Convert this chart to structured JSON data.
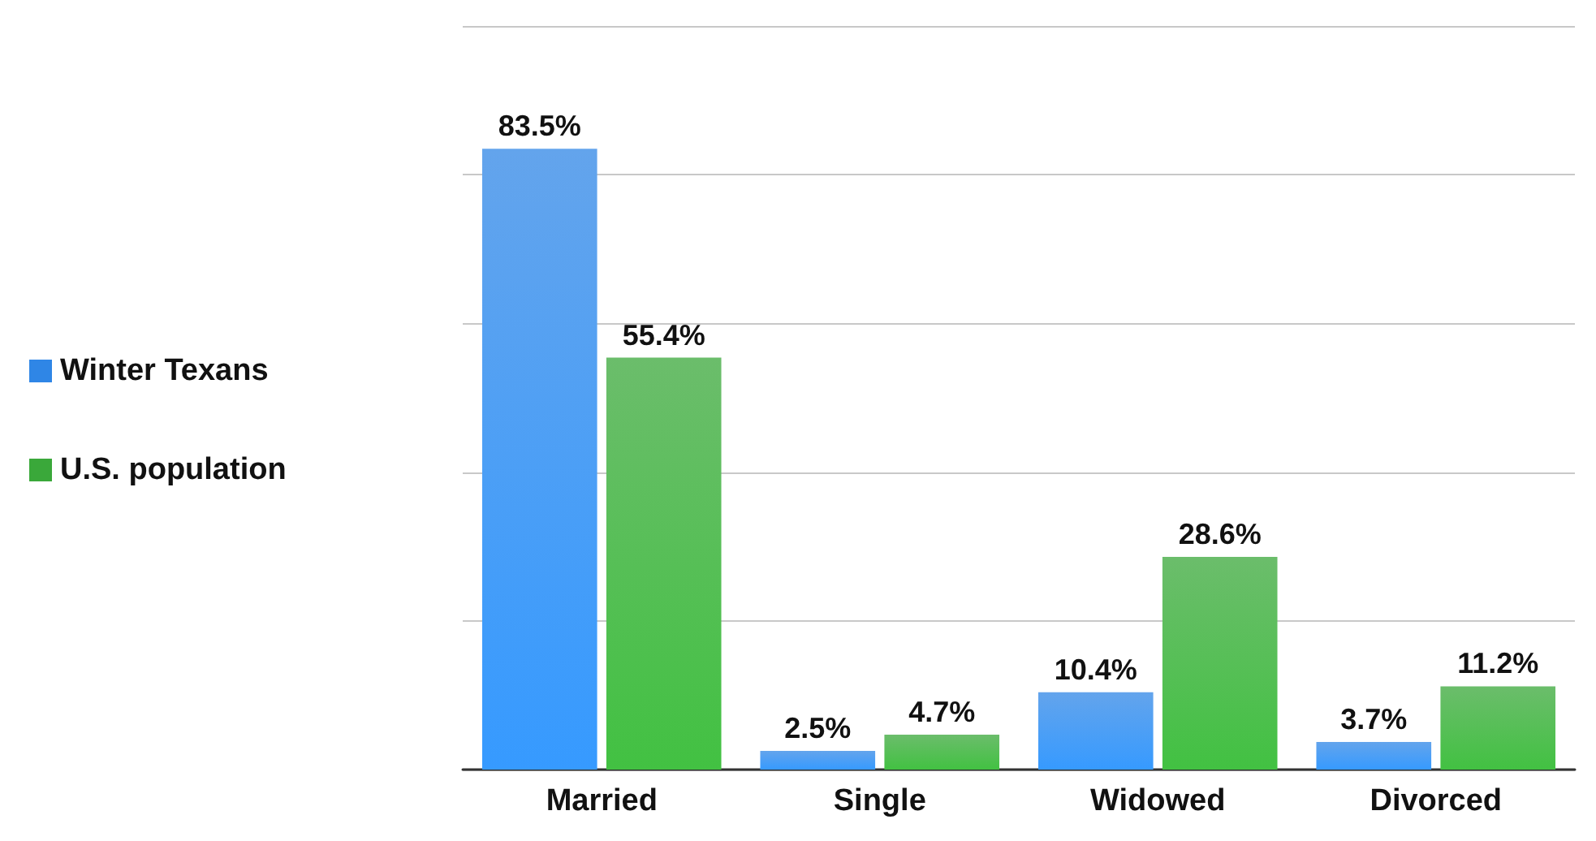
{
  "chart_data": {
    "type": "bar",
    "categories": [
      "Married",
      "Single",
      "Widowed",
      "Divorced"
    ],
    "series": [
      {
        "name": "Winter Texans",
        "color": "#2f86e6",
        "values": [
          83.5,
          2.5,
          10.4,
          3.7
        ],
        "value_labels": [
          "83.5%",
          "2.5%",
          "10.4%",
          "3.7%"
        ]
      },
      {
        "name": "U.S. population",
        "color": "#3aa83a",
        "values": [
          55.4,
          4.7,
          28.6,
          11.2
        ],
        "value_labels": [
          "55.4%",
          "4.7%",
          "28.6%",
          "11.2%"
        ]
      }
    ],
    "grid": "y",
    "legend": "left"
  }
}
